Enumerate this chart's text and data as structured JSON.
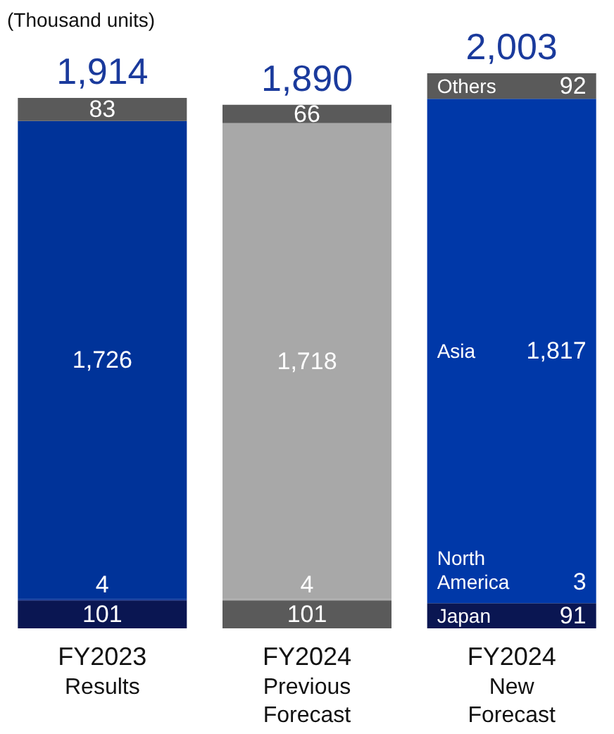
{
  "chart_data": {
    "type": "bar",
    "ylabel": "(Thousand units)",
    "categories": [
      "FY2023\nResults",
      "FY2024\nPrevious\nForecast",
      "FY2024\nNew\nForecast"
    ],
    "stacked": true,
    "legend": false,
    "series": [
      {
        "name": "Japan",
        "colors": [
          "#0a1652",
          "#5a5a5a",
          "#0a1652"
        ],
        "values": [
          101,
          101,
          91
        ],
        "value_labels": [
          "101",
          "101",
          "91"
        ]
      },
      {
        "name": "North America",
        "colors": [
          "#0a2f96",
          "#a8a8a8",
          "#0038a8"
        ],
        "values": [
          4,
          4,
          3
        ],
        "value_labels": [
          "4",
          "4",
          "3"
        ]
      },
      {
        "name": "Asia",
        "colors": [
          "#003399",
          "#a8a8a8",
          "#0038a8"
        ],
        "values": [
          1726,
          1718,
          1817
        ],
        "value_labels": [
          "1,726",
          "1,718",
          "1,817"
        ]
      },
      {
        "name": "Others",
        "colors": [
          "#5a5a5a",
          "#5a5a5a",
          "#5a5a5a"
        ],
        "values": [
          83,
          66,
          92
        ],
        "value_labels": [
          "83",
          "66",
          "92"
        ]
      }
    ],
    "totals": [
      "1,914",
      "1,890",
      "2,003"
    ]
  }
}
